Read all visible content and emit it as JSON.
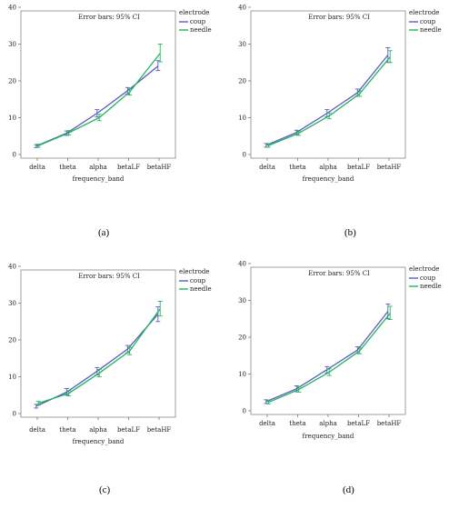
{
  "chart_data": [
    {
      "type": "line",
      "title": "Error bars: 95% CI",
      "caption": "(a)",
      "xlabel": "frequency_band",
      "ylabel": "",
      "categories": [
        "delta",
        "theta",
        "alpha",
        "betaLF",
        "betaHF"
      ],
      "ylim": [
        0,
        40
      ],
      "yticks": [
        0,
        10,
        20,
        30,
        40
      ],
      "legend_title": "electrode",
      "legend_position": "top-right",
      "grid": false,
      "series": [
        {
          "name": "coup",
          "color": "#5b5bc4",
          "values": [
            2.3,
            5.8,
            11.2,
            17.3,
            24.0
          ],
          "ci": [
            [
              1.9,
              2.7
            ],
            [
              5.2,
              6.4
            ],
            [
              10.2,
              12.2
            ],
            [
              16.4,
              18.2
            ],
            [
              22.8,
              25.5
            ]
          ]
        },
        {
          "name": "needle",
          "color": "#22b55a",
          "values": [
            2.4,
            5.9,
            10.0,
            17.0,
            27.5
          ],
          "ci": [
            [
              2.0,
              2.8
            ],
            [
              5.3,
              6.5
            ],
            [
              9.2,
              10.9
            ],
            [
              16.2,
              17.9
            ],
            [
              25.2,
              30.0
            ]
          ]
        }
      ]
    },
    {
      "type": "line",
      "title": "Error bars: 95% CI",
      "caption": "(b)",
      "xlabel": "frequency_band",
      "ylabel": "",
      "categories": [
        "delta",
        "theta",
        "alpha",
        "betaLF",
        "betaHF"
      ],
      "ylim": [
        0,
        40
      ],
      "yticks": [
        0,
        10,
        20,
        30,
        40
      ],
      "legend_title": "electrode",
      "legend_position": "top-right",
      "grid": false,
      "series": [
        {
          "name": "coup",
          "color": "#5b5bc4",
          "values": [
            2.5,
            6.0,
            11.2,
            16.8,
            27.0
          ],
          "ci": [
            [
              2.0,
              3.0
            ],
            [
              5.3,
              6.6
            ],
            [
              10.3,
              12.2
            ],
            [
              15.8,
              17.8
            ],
            [
              25.0,
              29.0
            ]
          ]
        },
        {
          "name": "needle",
          "color": "#22b55a",
          "values": [
            2.4,
            5.8,
            10.5,
            16.5,
            26.5
          ],
          "ci": [
            [
              2.0,
              2.9
            ],
            [
              5.2,
              6.4
            ],
            [
              9.7,
              11.3
            ],
            [
              15.8,
              17.3
            ],
            [
              25.0,
              28.2
            ]
          ]
        }
      ]
    },
    {
      "type": "line",
      "title": "Error bars: 95% CI",
      "caption": "(c)",
      "xlabel": "frequency_band",
      "ylabel": "",
      "categories": [
        "delta",
        "theta",
        "alpha",
        "betaLF",
        "betaHF"
      ],
      "ylim": [
        0,
        40
      ],
      "yticks": [
        0,
        10,
        20,
        30,
        40
      ],
      "legend_title": "electrode",
      "legend_position": "top-right",
      "grid": false,
      "series": [
        {
          "name": "coup",
          "color": "#5b5bc4",
          "values": [
            2.0,
            5.8,
            11.5,
            17.5,
            27.0
          ],
          "ci": [
            [
              1.5,
              2.5
            ],
            [
              5.0,
              6.8
            ],
            [
              10.5,
              12.5
            ],
            [
              16.5,
              18.5
            ],
            [
              25.0,
              29.0
            ]
          ]
        },
        {
          "name": "needle",
          "color": "#22b55a",
          "values": [
            2.8,
            5.5,
            11.0,
            17.0,
            28.5
          ],
          "ci": [
            [
              2.3,
              3.3
            ],
            [
              4.8,
              6.2
            ],
            [
              10.0,
              12.0
            ],
            [
              16.0,
              18.0
            ],
            [
              26.5,
              30.5
            ]
          ]
        }
      ]
    },
    {
      "type": "line",
      "title": "Error bars: 95% CI",
      "caption": "(d)",
      "xlabel": "frequency_band",
      "ylabel": "",
      "categories": [
        "delta",
        "theta",
        "alpha",
        "betaLF",
        "betaHF"
      ],
      "ylim": [
        0,
        40
      ],
      "yticks": [
        0,
        10,
        20,
        30,
        40
      ],
      "legend_title": "electrode",
      "legend_position": "top-right",
      "grid": false,
      "series": [
        {
          "name": "coup",
          "color": "#5b5bc4",
          "values": [
            2.5,
            6.0,
            11.2,
            16.5,
            27.0
          ],
          "ci": [
            [
              2.0,
              3.0
            ],
            [
              5.2,
              6.8
            ],
            [
              10.3,
              12.0
            ],
            [
              15.6,
              17.4
            ],
            [
              25.0,
              29.0
            ]
          ]
        },
        {
          "name": "needle",
          "color": "#22b55a",
          "values": [
            2.3,
            5.8,
            10.5,
            16.3,
            26.5
          ],
          "ci": [
            [
              1.9,
              2.8
            ],
            [
              5.1,
              6.5
            ],
            [
              9.6,
              11.4
            ],
            [
              15.5,
              17.1
            ],
            [
              24.8,
              28.4
            ]
          ]
        }
      ]
    }
  ]
}
